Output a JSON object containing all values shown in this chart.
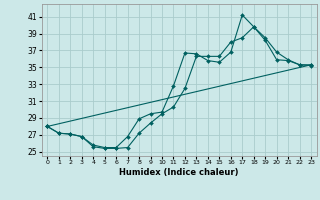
{
  "title": "",
  "xlabel": "Humidex (Indice chaleur)",
  "background_color": "#cce8e8",
  "grid_color": "#aacccc",
  "line_color": "#006060",
  "xlim": [
    -0.5,
    23.5
  ],
  "ylim": [
    24.5,
    42.5
  ],
  "yticks": [
    25,
    27,
    29,
    31,
    33,
    35,
    37,
    39,
    41
  ],
  "xticks": [
    0,
    1,
    2,
    3,
    4,
    5,
    6,
    7,
    8,
    9,
    10,
    11,
    12,
    13,
    14,
    15,
    16,
    17,
    18,
    19,
    20,
    21,
    22,
    23
  ],
  "line1_x": [
    0,
    1,
    2,
    3,
    4,
    5,
    6,
    7,
    8,
    9,
    10,
    11,
    12,
    13,
    14,
    15,
    16,
    17,
    18,
    19,
    20,
    21,
    22,
    23
  ],
  "line1_y": [
    28.0,
    27.2,
    27.1,
    26.8,
    25.6,
    25.4,
    25.4,
    25.5,
    27.2,
    28.4,
    29.5,
    30.3,
    32.5,
    36.3,
    36.3,
    36.3,
    38.0,
    38.5,
    39.8,
    38.2,
    35.9,
    35.8,
    35.3,
    35.3
  ],
  "line2_x": [
    0,
    1,
    2,
    3,
    4,
    5,
    6,
    7,
    8,
    9,
    10,
    11,
    12,
    13,
    14,
    15,
    16,
    17,
    18,
    19,
    20,
    21,
    22,
    23
  ],
  "line2_y": [
    28.0,
    27.2,
    27.1,
    26.8,
    25.8,
    25.5,
    25.5,
    26.8,
    28.9,
    29.5,
    29.7,
    32.8,
    36.7,
    36.6,
    35.8,
    35.6,
    36.8,
    41.2,
    39.8,
    38.5,
    36.8,
    35.9,
    35.3,
    35.2
  ],
  "line3_x": [
    0,
    23
  ],
  "line3_y": [
    28.0,
    35.3
  ]
}
